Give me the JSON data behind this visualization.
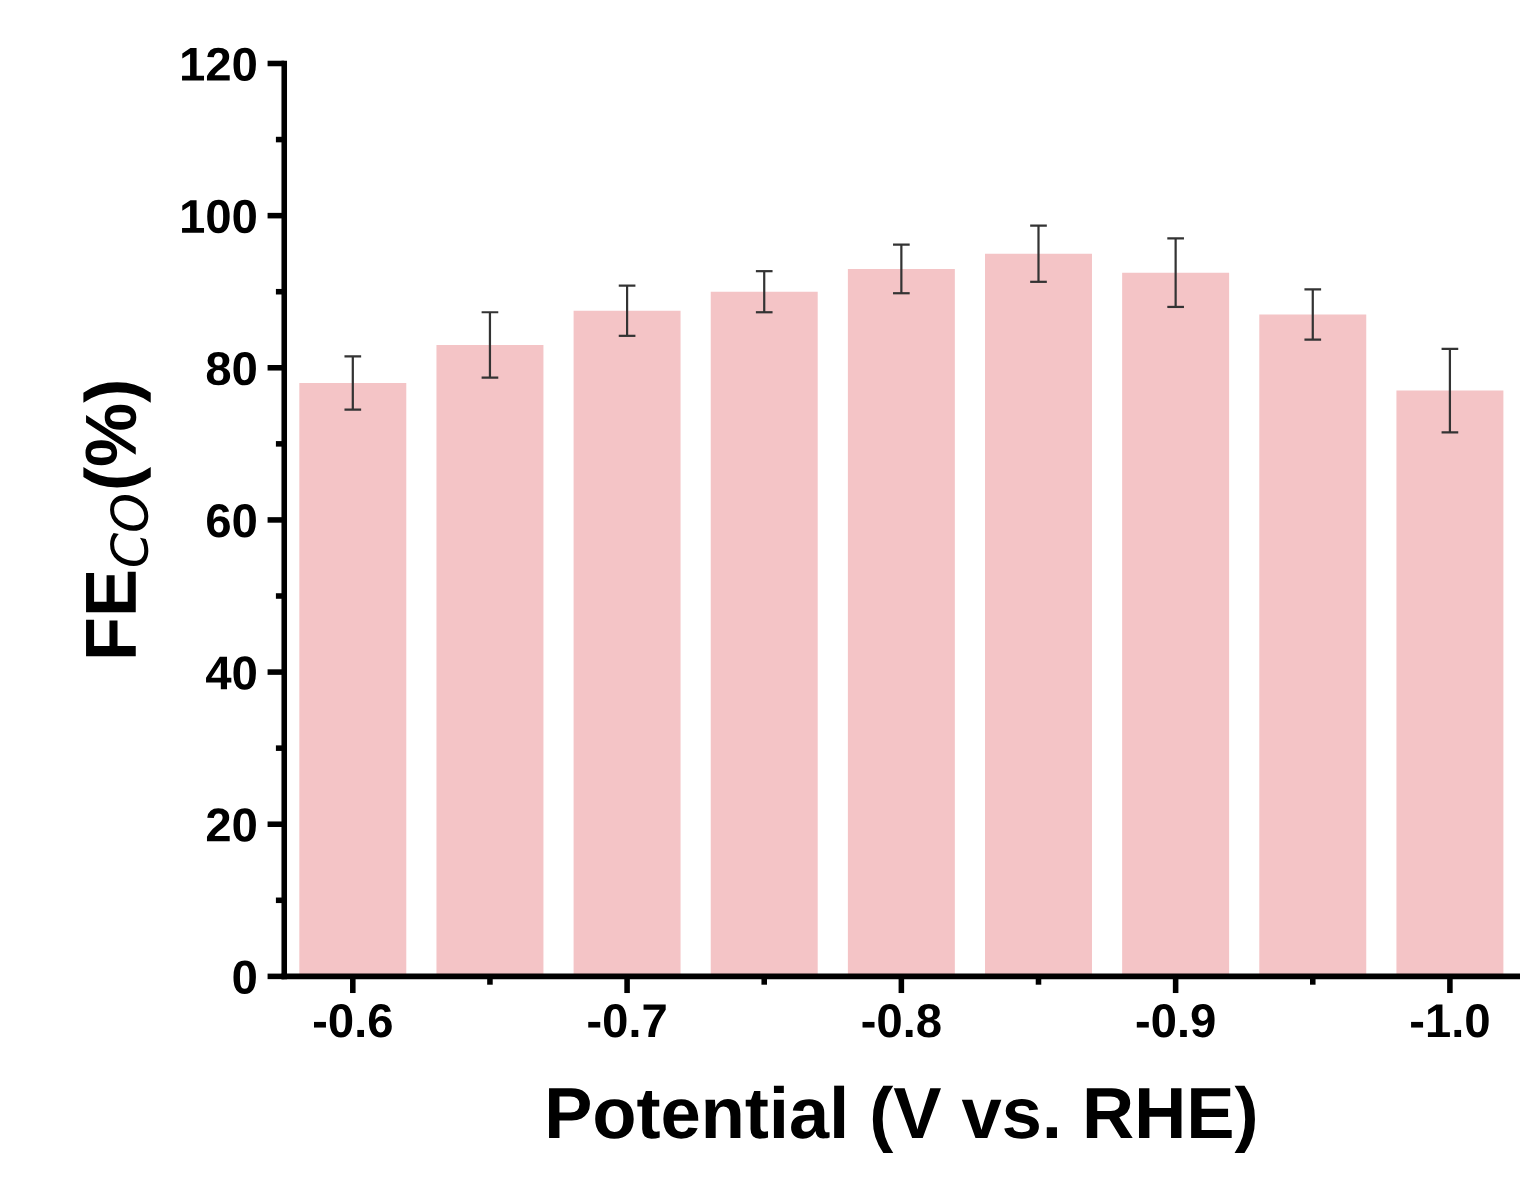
{
  "chart_data": {
    "type": "bar",
    "xlabel": "Potential (V vs. RHE)",
    "ylabel": "FE$_{CO}$(%)",
    "x": [
      -0.6,
      -0.65,
      -0.7,
      -0.75,
      -0.8,
      -0.85,
      -0.9,
      -0.95,
      -1.0
    ],
    "values": [
      78,
      83,
      87.5,
      90,
      93,
      95,
      92.5,
      87,
      77
    ],
    "errors": [
      3.5,
      4.3,
      3.3,
      2.7,
      3.2,
      3.7,
      4.5,
      3.3,
      5.5
    ],
    "color": "#f4c4c6",
    "xlim": [
      -0.575,
      -1.025
    ],
    "xticks": [
      -0.6,
      -0.7,
      -0.8,
      -0.9,
      {
        "value": -1.0,
        "label": "-1.0"
      }
    ],
    "ylim": [
      0,
      120
    ],
    "yticks": [
      0,
      20,
      40,
      60,
      80,
      100,
      120
    ],
    "grid": false,
    "legend": false
  }
}
